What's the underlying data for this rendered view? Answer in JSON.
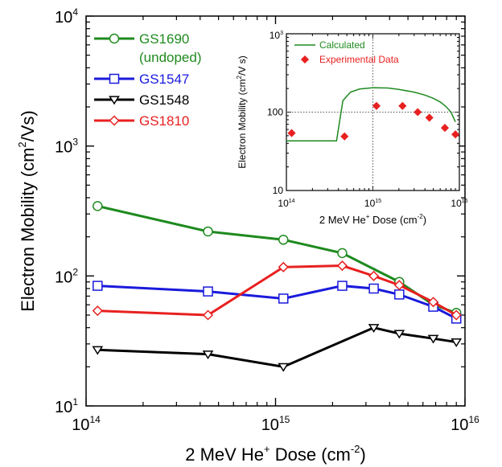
{
  "main_chart": {
    "xlabel": "2 MeV He",
    "xlabel_sup": "+",
    "xlabel_tail": " Dose (cm",
    "xlabel_exp": "-2",
    "xlabel_close": ")",
    "ylabel": "Electron Mobility (cm",
    "ylabel_sup": "2",
    "ylabel_tail": "/Vs)",
    "x_ticks": [
      {
        "base": "10",
        "exp": "14"
      },
      {
        "base": "10",
        "exp": "15"
      },
      {
        "base": "10",
        "exp": "16"
      }
    ],
    "y_ticks": [
      {
        "base": "10",
        "exp": "1"
      },
      {
        "base": "10",
        "exp": "2"
      },
      {
        "base": "10",
        "exp": "3"
      },
      {
        "base": "10",
        "exp": "4"
      }
    ]
  },
  "inset_chart": {
    "xlabel": "2 MeV He",
    "xlabel_sup": "+",
    "xlabel_tail": " Dose (cm",
    "xlabel_exp": "-2",
    "xlabel_close": ")",
    "ylabel": "Electron Mobility (cm",
    "ylabel_sup": "2",
    "ylabel_tail": "/V s)",
    "x_ticks": [
      {
        "base": "10",
        "exp": "14"
      },
      {
        "base": "10",
        "exp": "15"
      },
      {
        "base": "10",
        "exp": "16"
      }
    ],
    "y_ticks": [
      "10",
      "100"
    ],
    "y_top": {
      "base": "10",
      "exp": "3"
    }
  },
  "chart_data": [
    {
      "type": "line",
      "xlabel": "2 MeV He+ Dose (cm-2)",
      "ylabel": "Electron Mobility (cm2/Vs)",
      "xscale": "log",
      "yscale": "log",
      "xlim": [
        100000000000000.0,
        1e+16
      ],
      "ylim": [
        10,
        10000
      ],
      "grid": false,
      "legend": "top-left",
      "series": [
        {
          "name": "GS1690",
          "name_line2": "(undoped)",
          "color": "#1e8a1e",
          "marker": "circle",
          "x": [
            115000000000000.0,
            440000000000000.0,
            1100000000000000.0,
            2250000000000000.0,
            4500000000000000.0,
            6800000000000000.0,
            9000000000000000.0
          ],
          "y": [
            345,
            220,
            190,
            150,
            90,
            60,
            52
          ]
        },
        {
          "name": "GS1547",
          "color": "#1a1adc",
          "marker": "square",
          "x": [
            115000000000000.0,
            440000000000000.0,
            1100000000000000.0,
            2250000000000000.0,
            3300000000000000.0,
            4500000000000000.0,
            6800000000000000.0,
            9000000000000000.0
          ],
          "y": [
            84,
            76,
            67,
            84,
            80,
            72,
            58,
            47
          ]
        },
        {
          "name": "GS1548",
          "color": "#000000",
          "marker": "triangle-down",
          "x": [
            115000000000000.0,
            440000000000000.0,
            1100000000000000.0,
            3300000000000000.0,
            4500000000000000.0,
            6800000000000000.0,
            9000000000000000.0
          ],
          "y": [
            27,
            25,
            20,
            40,
            36,
            33,
            31
          ]
        },
        {
          "name": "GS1810",
          "color": "#e82020",
          "marker": "diamond",
          "x": [
            115000000000000.0,
            440000000000000.0,
            1100000000000000.0,
            2250000000000000.0,
            3300000000000000.0,
            4500000000000000.0,
            6800000000000000.0,
            9000000000000000.0
          ],
          "y": [
            54,
            50,
            117,
            120,
            100,
            85,
            63,
            50
          ]
        }
      ]
    },
    {
      "type": "line",
      "xlabel": "2 MeV He+ Dose (cm-2)",
      "ylabel": "Electron Mobility (cm2/V s)",
      "xscale": "log",
      "yscale": "log",
      "xlim": [
        100000000000000.0,
        1e+16
      ],
      "ylim": [
        10,
        1000
      ],
      "legend": "top-left",
      "reference_lines": {
        "x": 1000000000000000.0,
        "y": 100
      },
      "series": [
        {
          "name": "Calculated",
          "color": "#1e8a1e",
          "style": "line",
          "x": [
            100000000000000.0,
            200000000000000.0,
            300000000000000.0,
            380000000000000.0,
            450000000000000.0,
            550000000000000.0,
            700000000000000.0,
            1000000000000000.0,
            1500000000000000.0,
            2000000000000000.0,
            3000000000000000.0,
            4000000000000000.0,
            5000000000000000.0,
            6000000000000000.0,
            7000000000000000.0,
            8000000000000000.0,
            9000000000000000.0
          ],
          "y": [
            43,
            43,
            43,
            43,
            140,
            180,
            197,
            205,
            203,
            195,
            180,
            165,
            150,
            135,
            118,
            100,
            75
          ]
        },
        {
          "name": "Experimental Data",
          "color": "#e82020",
          "style": "diamond",
          "x": [
            115000000000000.0,
            470000000000000.0,
            1100000000000000.0,
            2200000000000000.0,
            3300000000000000.0,
            4500000000000000.0,
            6800000000000000.0,
            9000000000000000.0
          ],
          "y": [
            54,
            49,
            120,
            120,
            100,
            85,
            63,
            52
          ]
        }
      ]
    }
  ]
}
